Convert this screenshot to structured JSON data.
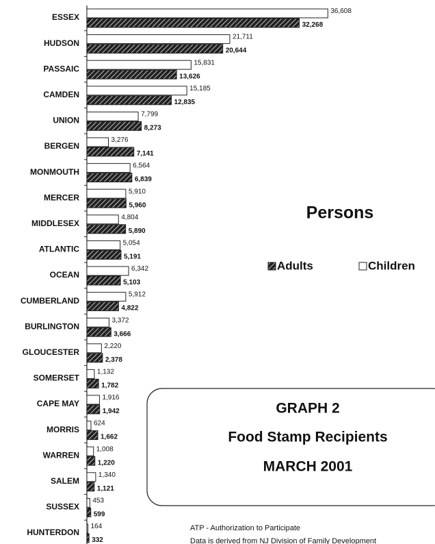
{
  "chart_data": {
    "type": "bar",
    "orientation": "horizontal",
    "title": "GRAPH 2",
    "subtitle": "Food Stamp Recipients",
    "date": "MARCH 2001",
    "legend_title": "Persons",
    "notes": [
      "ATP - Authorization to Participate",
      "Data is derived from NJ Division of Family Development"
    ],
    "categories": [
      "ESSEX",
      "HUDSON",
      "PASSAIC",
      "CAMDEN",
      "UNION",
      "BERGEN",
      "MONMOUTH",
      "MERCER",
      "MIDDLESEX",
      "ATLANTIC",
      "OCEAN",
      "CUMBERLAND",
      "BURLINGTON",
      "GLOUCESTER",
      "SOMERSET",
      "CAPE MAY",
      "MORRIS",
      "WARREN",
      "SALEM",
      "SUSSEX",
      "HUNTERDON"
    ],
    "series": [
      {
        "name": "Adults",
        "color": "#222222",
        "values": [
          32268,
          20644,
          13626,
          12835,
          8273,
          7141,
          6839,
          5960,
          5890,
          5191,
          5103,
          4822,
          3666,
          2378,
          1782,
          1942,
          1662,
          1220,
          1121,
          599,
          332
        ],
        "value_labels": [
          "32,268",
          "20,644",
          "13,626",
          "12,835",
          "8,273",
          "7,141",
          "6,839",
          "5,960",
          "5,890",
          "5,191",
          "5,103",
          "4,822",
          "3,666",
          "2,378",
          "1,782",
          "1,942",
          "1,662",
          "1,220",
          "1,121",
          "599",
          "332"
        ]
      },
      {
        "name": "Children",
        "color": "#ffffff",
        "values": [
          36608,
          21711,
          15831,
          15185,
          7799,
          3276,
          6564,
          5910,
          4804,
          5054,
          6342,
          5912,
          3372,
          2220,
          1132,
          1916,
          624,
          1008,
          1340,
          453,
          164
        ],
        "value_labels": [
          "36,608",
          "21,711",
          "15,831",
          "15,185",
          "7,799",
          "3,276",
          "6,564",
          "5,910",
          "4,804",
          "5,054",
          "6,342",
          "5,912",
          "3,372",
          "2,220",
          "1,132",
          "1,916",
          "624",
          "1,008",
          "1,340",
          "453",
          "164"
        ]
      }
    ],
    "xlim": [
      0,
      40000
    ]
  }
}
